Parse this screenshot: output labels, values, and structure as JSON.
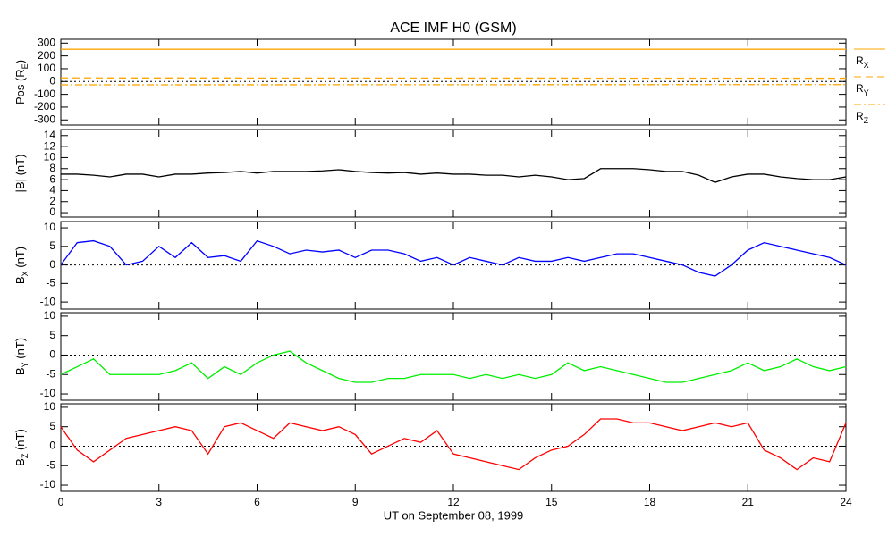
{
  "title": "ACE IMF H0 (GSM)",
  "xlabel": "UT on September 08, 1999",
  "chart_data": [
    {
      "type": "line",
      "ylabel": {
        "main": "Pos (R",
        "sub": "E",
        "rest": ")"
      },
      "x": [
        0,
        24
      ],
      "xlim": [
        0,
        24
      ],
      "xticks": [
        0,
        3,
        6,
        9,
        12,
        15,
        18,
        21,
        24
      ],
      "ylim": [
        -340,
        330
      ],
      "yticks": [
        -300,
        -200,
        -100,
        0,
        100,
        200,
        300
      ],
      "zero_line": true,
      "legend": "right",
      "series": [
        {
          "name": "R",
          "sub": "X",
          "color": "#ffa500",
          "dash": "solid",
          "values": [
            252,
            252
          ]
        },
        {
          "name": "R",
          "sub": "Y",
          "color": "#ffa500",
          "dash": "dashed",
          "values": [
            28,
            26
          ]
        },
        {
          "name": "R",
          "sub": "Z",
          "color": "#ffa500",
          "dash": "dashdot",
          "values": [
            -26,
            -24
          ]
        }
      ]
    },
    {
      "type": "line",
      "ylabel": {
        "main": "|B| (nT)",
        "sub": "",
        "rest": ""
      },
      "x": [
        0,
        0.5,
        1,
        1.5,
        2,
        2.5,
        3,
        3.5,
        4,
        4.5,
        5,
        5.5,
        6,
        6.5,
        7,
        7.5,
        8,
        8.5,
        9,
        9.5,
        10,
        10.5,
        11,
        11.5,
        12,
        12.5,
        13,
        13.5,
        14,
        14.5,
        15,
        15.5,
        16,
        16.5,
        17,
        17.5,
        18,
        18.5,
        19,
        19.5,
        20,
        20.5,
        21,
        21.5,
        22,
        22.5,
        23,
        23.5,
        24
      ],
      "xlim": [
        0,
        24
      ],
      "xticks": [
        0,
        3,
        6,
        9,
        12,
        15,
        18,
        21,
        24
      ],
      "ylim": [
        -0.8,
        15.1
      ],
      "yticks": [
        0,
        2,
        4,
        6,
        8,
        10,
        12,
        14
      ],
      "zero_line": false,
      "series": [
        {
          "color": "#000000",
          "dash": "solid",
          "values": [
            7,
            7,
            6.8,
            6.5,
            7,
            7,
            6.5,
            7,
            7,
            7.2,
            7.3,
            7.5,
            7.2,
            7.5,
            7.5,
            7.5,
            7.6,
            7.8,
            7.5,
            7.3,
            7.2,
            7.3,
            7,
            7.2,
            7,
            7,
            6.8,
            6.8,
            6.5,
            6.8,
            6.5,
            6,
            6.2,
            8,
            8,
            8,
            7.8,
            7.5,
            7.5,
            6.8,
            5.5,
            6.5,
            7,
            7,
            6.5,
            6.2,
            6,
            6,
            6.5
          ]
        }
      ]
    },
    {
      "type": "line",
      "ylabel": {
        "main": "B",
        "sub": "X",
        "rest": " (nT)"
      },
      "x": [
        0,
        0.5,
        1,
        1.5,
        2,
        2.5,
        3,
        3.5,
        4,
        4.5,
        5,
        5.5,
        6,
        6.5,
        7,
        7.5,
        8,
        8.5,
        9,
        9.5,
        10,
        10.5,
        11,
        11.5,
        12,
        12.5,
        13,
        13.5,
        14,
        14.5,
        15,
        15.5,
        16,
        16.5,
        17,
        17.5,
        18,
        18.5,
        19,
        19.5,
        20,
        20.5,
        21,
        21.5,
        22,
        22.5,
        23,
        23.5,
        24
      ],
      "xlim": [
        0,
        24
      ],
      "xticks": [
        0,
        3,
        6,
        9,
        12,
        15,
        18,
        21,
        24
      ],
      "ylim": [
        -11.9,
        11.7
      ],
      "yticks": [
        -10,
        -5,
        0,
        5,
        10
      ],
      "zero_line": true,
      "series": [
        {
          "color": "#0000ff",
          "dash": "solid",
          "values": [
            0,
            6,
            6.5,
            5,
            0,
            1,
            5,
            2,
            6,
            2,
            2.5,
            1,
            6.5,
            5,
            3,
            4,
            3.5,
            4,
            2,
            4,
            4,
            3,
            1,
            2,
            0,
            2,
            1,
            0,
            2,
            1,
            1,
            2,
            1,
            2,
            3,
            3,
            2,
            1,
            0,
            -2,
            -3,
            0,
            4,
            6,
            5,
            4,
            3,
            2,
            0
          ]
        }
      ]
    },
    {
      "type": "line",
      "ylabel": {
        "main": "B",
        "sub": "Y",
        "rest": " (nT)"
      },
      "x": [
        0,
        0.5,
        1,
        1.5,
        2,
        2.5,
        3,
        3.5,
        4,
        4.5,
        5,
        5.5,
        6,
        6.5,
        7,
        7.5,
        8,
        8.5,
        9,
        9.5,
        10,
        10.5,
        11,
        11.5,
        12,
        12.5,
        13,
        13.5,
        14,
        14.5,
        15,
        15.5,
        16,
        16.5,
        17,
        17.5,
        18,
        18.5,
        19,
        19.5,
        20,
        20.5,
        21,
        21.5,
        22,
        22.5,
        23,
        23.5,
        24
      ],
      "xlim": [
        0,
        24
      ],
      "xticks": [
        0,
        3,
        6,
        9,
        12,
        15,
        18,
        21,
        24
      ],
      "ylim": [
        -11.6,
        10.9
      ],
      "yticks": [
        -10,
        -5,
        0,
        5,
        10
      ],
      "zero_line": true,
      "series": [
        {
          "color": "#00ee00",
          "dash": "solid",
          "values": [
            -5,
            -3,
            -1,
            -5,
            -5,
            -5,
            -5,
            -4,
            -2,
            -6,
            -3,
            -5,
            -2,
            0,
            1,
            -2,
            -4,
            -6,
            -7,
            -7,
            -6,
            -6,
            -5,
            -5,
            -5,
            -6,
            -5,
            -6,
            -5,
            -6,
            -5,
            -2,
            -4,
            -3,
            -4,
            -5,
            -6,
            -7,
            -7,
            -6,
            -5,
            -4,
            -2,
            -4,
            -3,
            -1,
            -3,
            -4,
            -3
          ]
        }
      ]
    },
    {
      "type": "line",
      "ylabel": {
        "main": "B",
        "sub": "Z",
        "rest": " (nT)"
      },
      "x": [
        0,
        0.5,
        1,
        1.5,
        2,
        2.5,
        3,
        3.5,
        4,
        4.5,
        5,
        5.5,
        6,
        6.5,
        7,
        7.5,
        8,
        8.5,
        9,
        9.5,
        10,
        10.5,
        11,
        11.5,
        12,
        12.5,
        13,
        13.5,
        14,
        14.5,
        15,
        15.5,
        16,
        16.5,
        17,
        17.5,
        18,
        18.5,
        19,
        19.5,
        20,
        20.5,
        21,
        21.5,
        22,
        22.5,
        23,
        23.5,
        24
      ],
      "xlim": [
        0,
        24
      ],
      "xticks": [
        0,
        3,
        6,
        9,
        12,
        15,
        18,
        21,
        24
      ],
      "xticklabels": true,
      "ylim": [
        -11.6,
        10.9
      ],
      "yticks": [
        -10,
        -5,
        0,
        5,
        10
      ],
      "zero_line": true,
      "series": [
        {
          "color": "#ff0000",
          "dash": "solid",
          "values": [
            5,
            -1,
            -4,
            -1,
            2,
            3,
            4,
            5,
            4,
            -2,
            5,
            6,
            4,
            2,
            6,
            5,
            4,
            5,
            3,
            -2,
            0,
            2,
            1,
            4,
            -2,
            -3,
            -4,
            -5,
            -6,
            -3,
            -1,
            0,
            3,
            7,
            7,
            6,
            6,
            5,
            4,
            5,
            6,
            5,
            6,
            -1,
            -3,
            -6,
            -3,
            -4,
            6
          ]
        }
      ]
    }
  ]
}
